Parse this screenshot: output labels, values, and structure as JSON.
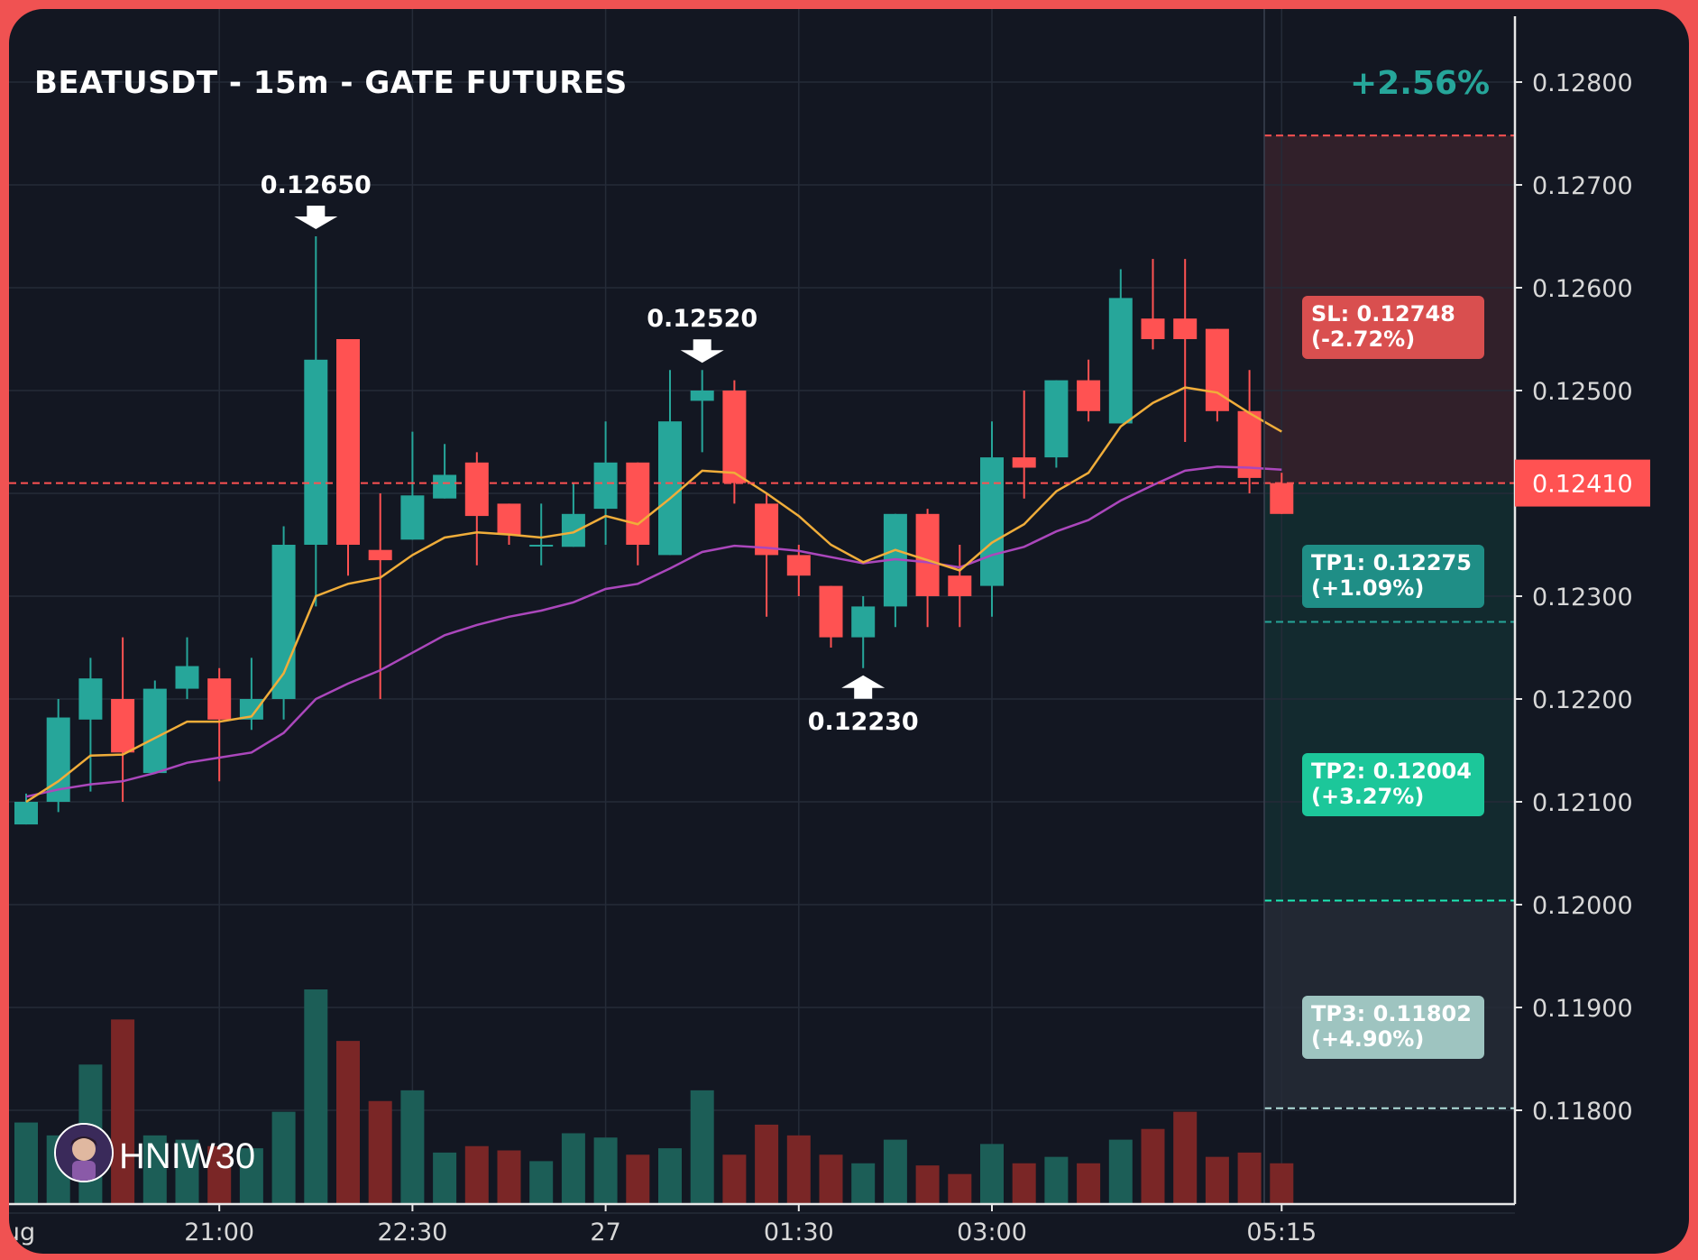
{
  "header": {
    "title": "BEATUSDT - 15m - GATE FUTURES",
    "change": "+2.56%"
  },
  "watermark": {
    "name": "HNIW30",
    "icon": "avatar-icon"
  },
  "colors": {
    "background": "#131722",
    "border": "#f05252",
    "up": "#26a69a",
    "down": "#ff5252",
    "ema_fast": "#f0ad3a",
    "ema_slow": "#ab47bc",
    "sl": "#ff5252",
    "tp1": "#26a69a",
    "tp2": "#1de9b6",
    "tp3": "#b2dfdb"
  },
  "levels": {
    "current": "0.12410",
    "sl": "SL: 0.12748",
    "sl_pct": "(-2.72%)",
    "tp1": "TP1: 0.12275",
    "tp1_pct": "(+1.09%)",
    "tp2": "TP2: 0.12004",
    "tp2_pct": "(+3.27%)",
    "tp3": "TP3: 0.11802",
    "tp3_pct": "(+4.90%)"
  },
  "chart_data": {
    "type": "candlestick",
    "title": "BEATUSDT - 15m - GATE FUTURES",
    "ylim": [
      0.1173,
      0.129
    ],
    "y_ticks": [
      "0.12800",
      "0.12700",
      "0.12600",
      "0.12500",
      "0.12400",
      "0.12300",
      "0.12200",
      "0.12100",
      "0.12000",
      "0.11900",
      "0.11800"
    ],
    "x_ticks": [
      {
        "label": "ug",
        "index": -0.7
      },
      {
        "label": "21:00",
        "index": 6
      },
      {
        "label": "22:30",
        "index": 12
      },
      {
        "label": "27",
        "index": 18
      },
      {
        "label": "01:30",
        "index": 24
      },
      {
        "label": "03:00",
        "index": 30
      },
      {
        "label": "05:15",
        "index": 39
      }
    ],
    "candles": [
      {
        "o": 0.12078,
        "h": 0.12108,
        "l": 0.12078,
        "c": 0.121,
        "v": 0.38
      },
      {
        "o": 0.121,
        "h": 0.122,
        "l": 0.1209,
        "c": 0.12182,
        "v": 0.32
      },
      {
        "o": 0.1218,
        "h": 0.1224,
        "l": 0.1211,
        "c": 0.1222,
        "v": 0.65
      },
      {
        "o": 0.122,
        "h": 0.1226,
        "l": 0.121,
        "c": 0.12148,
        "v": 0.86
      },
      {
        "o": 0.12128,
        "h": 0.12218,
        "l": 0.12128,
        "c": 0.1221,
        "v": 0.32
      },
      {
        "o": 0.1221,
        "h": 0.1226,
        "l": 0.122,
        "c": 0.12232,
        "v": 0.3
      },
      {
        "o": 0.1222,
        "h": 0.1223,
        "l": 0.1212,
        "c": 0.1218,
        "v": 0.27
      },
      {
        "o": 0.1218,
        "h": 0.1224,
        "l": 0.1217,
        "c": 0.122,
        "v": 0.26
      },
      {
        "o": 0.122,
        "h": 0.12368,
        "l": 0.1218,
        "c": 0.1235,
        "v": 0.43
      },
      {
        "o": 0.1235,
        "h": 0.1265,
        "l": 0.1229,
        "c": 0.1253,
        "v": 1.0
      },
      {
        "o": 0.1255,
        "h": 0.1255,
        "l": 0.1232,
        "c": 0.1235,
        "v": 0.76
      },
      {
        "o": 0.12345,
        "h": 0.124,
        "l": 0.122,
        "c": 0.12335,
        "v": 0.48
      },
      {
        "o": 0.12355,
        "h": 0.1246,
        "l": 0.12355,
        "c": 0.12398,
        "v": 0.53
      },
      {
        "o": 0.12395,
        "h": 0.12448,
        "l": 0.12395,
        "c": 0.12418,
        "v": 0.24
      },
      {
        "o": 0.1243,
        "h": 0.1244,
        "l": 0.1233,
        "c": 0.12378,
        "v": 0.27
      },
      {
        "o": 0.1239,
        "h": 0.1239,
        "l": 0.1235,
        "c": 0.1236,
        "v": 0.25
      },
      {
        "o": 0.1235,
        "h": 0.1239,
        "l": 0.1233,
        "c": 0.1235,
        "v": 0.2
      },
      {
        "o": 0.12348,
        "h": 0.1241,
        "l": 0.12348,
        "c": 0.1238,
        "v": 0.33
      },
      {
        "o": 0.12385,
        "h": 0.1247,
        "l": 0.1235,
        "c": 0.1243,
        "v": 0.31
      },
      {
        "o": 0.1243,
        "h": 0.1243,
        "l": 0.1233,
        "c": 0.1235,
        "v": 0.23
      },
      {
        "o": 0.1234,
        "h": 0.1252,
        "l": 0.1234,
        "c": 0.1247,
        "v": 0.26
      },
      {
        "o": 0.1249,
        "h": 0.1252,
        "l": 0.1244,
        "c": 0.125,
        "v": 0.53
      },
      {
        "o": 0.125,
        "h": 0.1251,
        "l": 0.1239,
        "c": 0.1241,
        "v": 0.23
      },
      {
        "o": 0.1239,
        "h": 0.124,
        "l": 0.1228,
        "c": 0.1234,
        "v": 0.37
      },
      {
        "o": 0.1234,
        "h": 0.1235,
        "l": 0.123,
        "c": 0.1232,
        "v": 0.32
      },
      {
        "o": 0.1231,
        "h": 0.1231,
        "l": 0.1225,
        "c": 0.1226,
        "v": 0.23
      },
      {
        "o": 0.1226,
        "h": 0.123,
        "l": 0.1223,
        "c": 0.1229,
        "v": 0.19
      },
      {
        "o": 0.1229,
        "h": 0.1238,
        "l": 0.1227,
        "c": 0.1238,
        "v": 0.3
      },
      {
        "o": 0.1238,
        "h": 0.12385,
        "l": 0.1227,
        "c": 0.123,
        "v": 0.18
      },
      {
        "o": 0.1232,
        "h": 0.1235,
        "l": 0.1227,
        "c": 0.123,
        "v": 0.14
      },
      {
        "o": 0.1231,
        "h": 0.1247,
        "l": 0.1228,
        "c": 0.12435,
        "v": 0.28
      },
      {
        "o": 0.12435,
        "h": 0.125,
        "l": 0.12395,
        "c": 0.12425,
        "v": 0.19
      },
      {
        "o": 0.12435,
        "h": 0.1251,
        "l": 0.12425,
        "c": 0.1251,
        "v": 0.22
      },
      {
        "o": 0.1251,
        "h": 0.1253,
        "l": 0.1247,
        "c": 0.1248,
        "v": 0.19
      },
      {
        "o": 0.12468,
        "h": 0.12618,
        "l": 0.12468,
        "c": 0.1259,
        "v": 0.3
      },
      {
        "o": 0.1257,
        "h": 0.12628,
        "l": 0.1254,
        "c": 0.1255,
        "v": 0.35
      },
      {
        "o": 0.1257,
        "h": 0.12628,
        "l": 0.1245,
        "c": 0.1255,
        "v": 0.43
      },
      {
        "o": 0.1256,
        "h": 0.1256,
        "l": 0.1247,
        "c": 0.1248,
        "v": 0.22
      },
      {
        "o": 0.1248,
        "h": 0.1252,
        "l": 0.124,
        "c": 0.12415,
        "v": 0.24
      },
      {
        "o": 0.1241,
        "h": 0.1242,
        "l": 0.1238,
        "c": 0.1238,
        "v": 0.19
      }
    ],
    "ema_fast": [
      0.121,
      0.1212,
      0.12145,
      0.12146,
      0.12162,
      0.12178,
      0.12178,
      0.12183,
      0.12225,
      0.123,
      0.12312,
      0.12318,
      0.1234,
      0.12357,
      0.12362,
      0.1236,
      0.12357,
      0.12362,
      0.12378,
      0.1237,
      0.12395,
      0.12422,
      0.1242,
      0.124,
      0.12378,
      0.1235,
      0.12333,
      0.12345,
      0.12335,
      0.12325,
      0.12352,
      0.1237,
      0.12402,
      0.1242,
      0.12465,
      0.12488,
      0.12503,
      0.12498,
      0.12478,
      0.1246
    ],
    "ema_slow": [
      0.12105,
      0.12112,
      0.12117,
      0.1212,
      0.12128,
      0.12138,
      0.12143,
      0.12148,
      0.12167,
      0.122,
      0.12215,
      0.12228,
      0.12245,
      0.12262,
      0.12272,
      0.1228,
      0.12286,
      0.12294,
      0.12307,
      0.12312,
      0.12327,
      0.12343,
      0.12349,
      0.12347,
      0.12344,
      0.12338,
      0.12332,
      0.12336,
      0.12333,
      0.12328,
      0.1234,
      0.12348,
      0.12363,
      0.12374,
      0.12393,
      0.12408,
      0.12422,
      0.12426,
      0.12425,
      0.12423
    ],
    "annotations": [
      {
        "label": "0.12650",
        "index": 9,
        "price": 0.1265,
        "direction": "down"
      },
      {
        "label": "0.12520",
        "index": 21,
        "price": 0.1252,
        "direction": "down"
      },
      {
        "label": "0.12230",
        "index": 26,
        "price": 0.1223,
        "direction": "up"
      }
    ],
    "levels": {
      "entry": 0.1241,
      "sl": 0.12748,
      "tp1": 0.12275,
      "tp2": 0.12004,
      "tp3": 0.11802
    }
  }
}
